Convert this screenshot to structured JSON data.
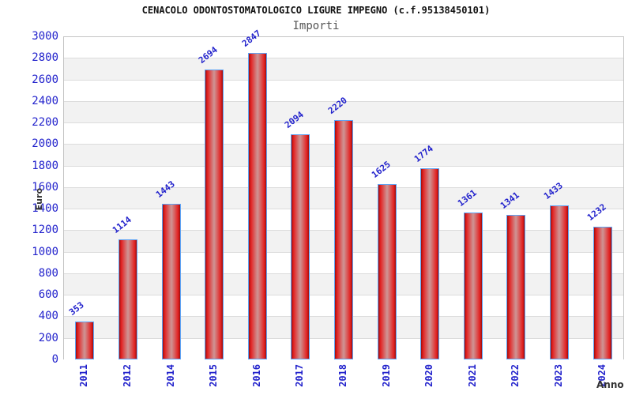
{
  "header": {
    "title": "CENACOLO ODONTOSTOMATOLOGICO LIGURE IMPEGNO (c.f.95138450101)",
    "subtitle": "Importi"
  },
  "chart_data": {
    "type": "bar",
    "title": "CENACOLO ODONTOSTOMATOLOGICO LIGURE IMPEGNO (c.f.95138450101)",
    "subtitle": "Importi",
    "xlabel": "Anno",
    "ylabel": "Euro",
    "categories": [
      "2011",
      "2012",
      "2014",
      "2015",
      "2016",
      "2017",
      "2018",
      "2019",
      "2020",
      "2021",
      "2022",
      "2023",
      "2024"
    ],
    "values": [
      353,
      1114,
      1443,
      2694,
      2847,
      2094,
      2220,
      1625,
      1774,
      1361,
      1341,
      1433,
      1232
    ],
    "ylim": [
      0,
      3000
    ],
    "ytick_step": 200,
    "grid": true,
    "legend": "none",
    "bar_labels_shown": true,
    "xtick_rotation_deg": -90,
    "bar_label_rotation_deg": -38
  },
  "colors": {
    "axis_label_blue": "#2222cc",
    "bar_border_blue": "#5ea4f5",
    "bar_edge_dark_red": "#9b0f0f",
    "bar_red": "#e32222",
    "bar_center_light": "#cf9090",
    "grid_line": "#dcdcdc",
    "band_alt_gray": "#f2f2f2",
    "band_white": "#ffffff",
    "title_color": "#111111",
    "subtitle_color": "#555555",
    "axis_title_dark": "#333333"
  }
}
